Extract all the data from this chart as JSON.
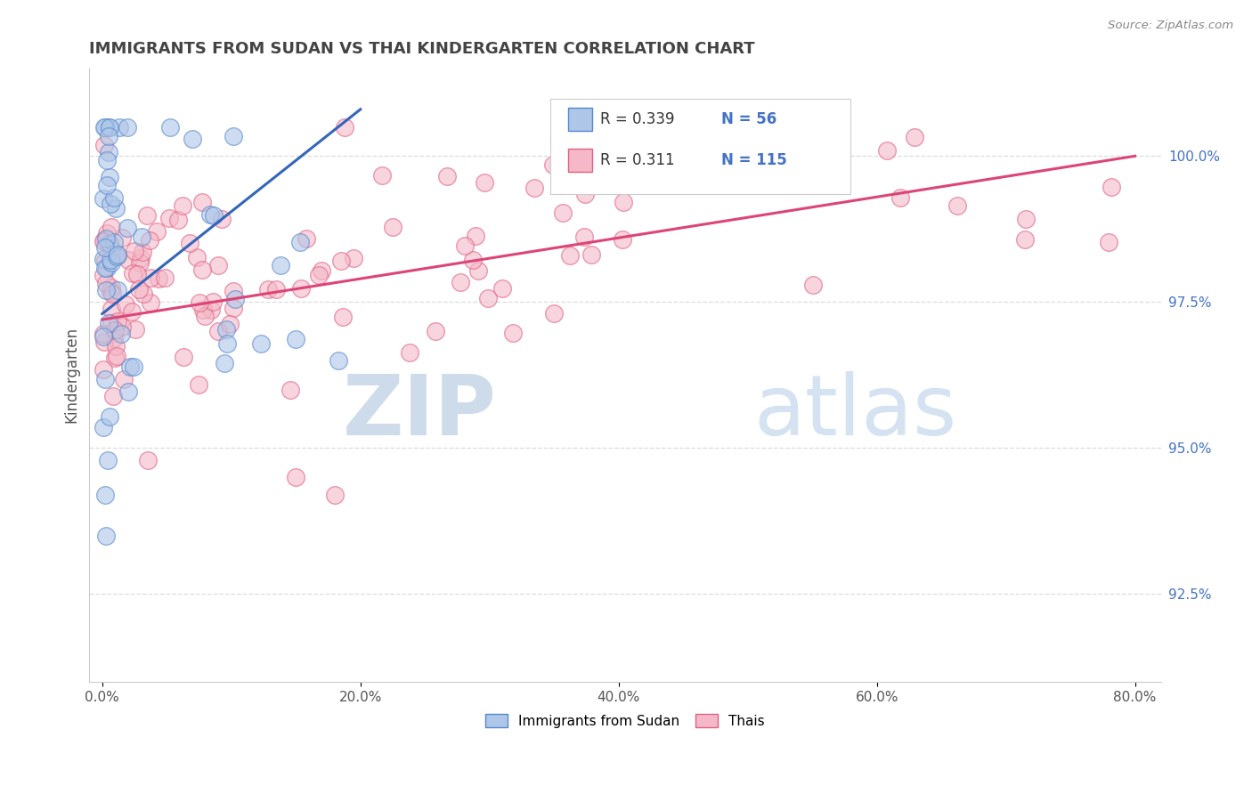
{
  "title": "IMMIGRANTS FROM SUDAN VS THAI KINDERGARTEN CORRELATION CHART",
  "source": "Source: ZipAtlas.com",
  "ylabel": "Kindergarten",
  "ylim": [
    91.0,
    101.5
  ],
  "xlim": [
    -1.0,
    82.0
  ],
  "yticks": [
    92.5,
    95.0,
    97.5,
    100.0
  ],
  "ytick_labels": [
    "92.5%",
    "95.0%",
    "97.5%",
    "100.0%"
  ],
  "xticks": [
    0,
    20,
    40,
    60,
    80
  ],
  "xtick_labels": [
    "0.0%",
    "20.0%",
    "40.0%",
    "60.0%",
    "80.0%"
  ],
  "legend_R_blue": "0.339",
  "legend_N_blue": "56",
  "legend_R_pink": "0.311",
  "legend_N_pink": "115",
  "blue_face_color": "#aec6e8",
  "blue_edge_color": "#5588cc",
  "pink_face_color": "#f4b8c8",
  "pink_edge_color": "#e06080",
  "blue_line_color": "#3366bb",
  "pink_line_color": "#dd4477",
  "watermark_zip": "ZIP",
  "watermark_atlas": "atlas",
  "watermark_zip_color": "#c5d5e8",
  "watermark_atlas_color": "#b8cfe8",
  "title_color": "#444444",
  "source_color": "#888888",
  "ytick_color": "#4472c4",
  "grid_color": "#dddddd",
  "legend_border_color": "#cccccc"
}
